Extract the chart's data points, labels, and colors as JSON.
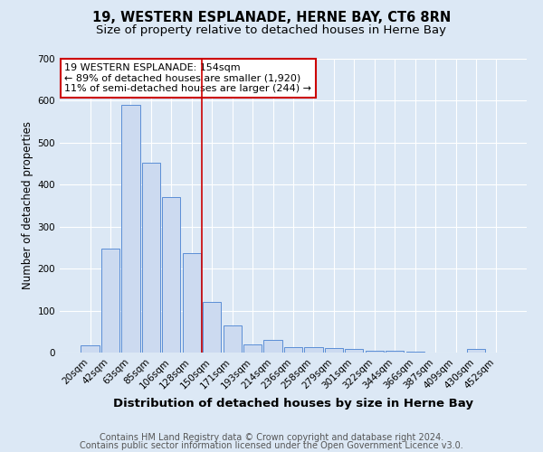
{
  "title": "19, WESTERN ESPLANADE, HERNE BAY, CT6 8RN",
  "subtitle": "Size of property relative to detached houses in Herne Bay",
  "xlabel": "Distribution of detached houses by size in Herne Bay",
  "ylabel": "Number of detached properties",
  "categories": [
    "20sqm",
    "42sqm",
    "63sqm",
    "85sqm",
    "106sqm",
    "128sqm",
    "150sqm",
    "171sqm",
    "193sqm",
    "214sqm",
    "236sqm",
    "258sqm",
    "279sqm",
    "301sqm",
    "322sqm",
    "344sqm",
    "366sqm",
    "387sqm",
    "409sqm",
    "430sqm",
    "452sqm"
  ],
  "values": [
    18,
    248,
    590,
    452,
    370,
    237,
    120,
    65,
    20,
    30,
    14,
    12,
    10,
    8,
    5,
    5,
    3,
    1,
    0,
    8,
    0
  ],
  "bar_color": "#ccdaf0",
  "bar_edge_color": "#5b8ed6",
  "background_color": "#dce8f5",
  "grid_color": "#ffffff",
  "vline_x": 5.5,
  "vline_color": "#cc0000",
  "annotation_text": "19 WESTERN ESPLANADE: 154sqm\n← 89% of detached houses are smaller (1,920)\n11% of semi-detached houses are larger (244) →",
  "annotation_box_color": "#ffffff",
  "annotation_box_edge": "#cc0000",
  "footer1": "Contains HM Land Registry data © Crown copyright and database right 2024.",
  "footer2": "Contains public sector information licensed under the Open Government Licence v3.0.",
  "ylim": [
    0,
    700
  ],
  "yticks": [
    0,
    100,
    200,
    300,
    400,
    500,
    600,
    700
  ],
  "title_fontsize": 10.5,
  "subtitle_fontsize": 9.5,
  "xlabel_fontsize": 9.5,
  "ylabel_fontsize": 8.5,
  "tick_fontsize": 7.5,
  "annotation_fontsize": 8,
  "footer_fontsize": 7
}
